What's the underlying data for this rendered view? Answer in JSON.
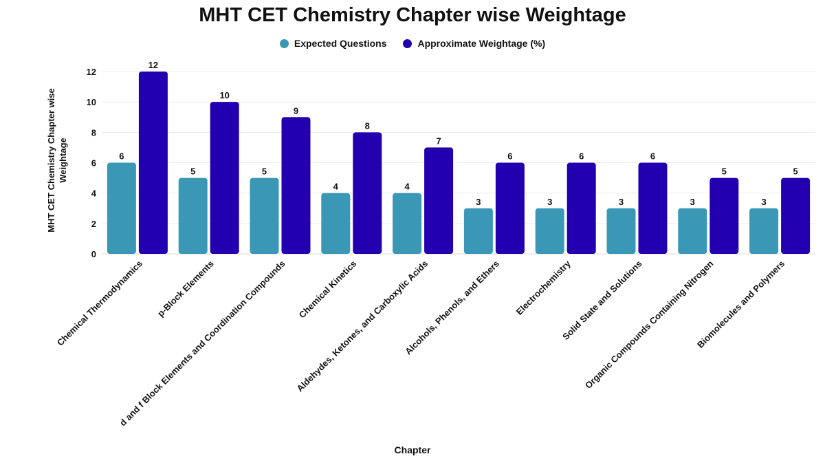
{
  "chart_data": {
    "type": "bar",
    "title": "MHT CET Chemistry Chapter wise Weightage",
    "xlabel": "Chapter",
    "ylabel": "MHT CET Chemistry Chapter wise Weightage",
    "ylim": [
      0,
      12
    ],
    "yticks": [
      0,
      2,
      4,
      6,
      8,
      10,
      12
    ],
    "grid": true,
    "legend": "top-center",
    "categories": [
      "Chemical Thermodynamics",
      "p-Block Elements",
      "d and f Block Elements and Coordination Compounds",
      "Chemical Kinetics",
      "Aldehydes, Ketones, and Carboxylic Acids",
      "Alcohols, Phenols, and Ethers",
      "Electrochemistry",
      "Solid State and Solutions",
      "Organic Compounds Containing Nitrogen",
      "Biomolecules and Polymers"
    ],
    "series": [
      {
        "name": "Expected Questions",
        "color": "#3a97b5",
        "values": [
          6,
          5,
          5,
          4,
          4,
          3,
          3,
          3,
          3,
          3
        ]
      },
      {
        "name": "Approximate Weightage (%)",
        "color": "#2200b0",
        "values": [
          12,
          10,
          9,
          8,
          7,
          6,
          6,
          6,
          5,
          5
        ]
      }
    ]
  }
}
